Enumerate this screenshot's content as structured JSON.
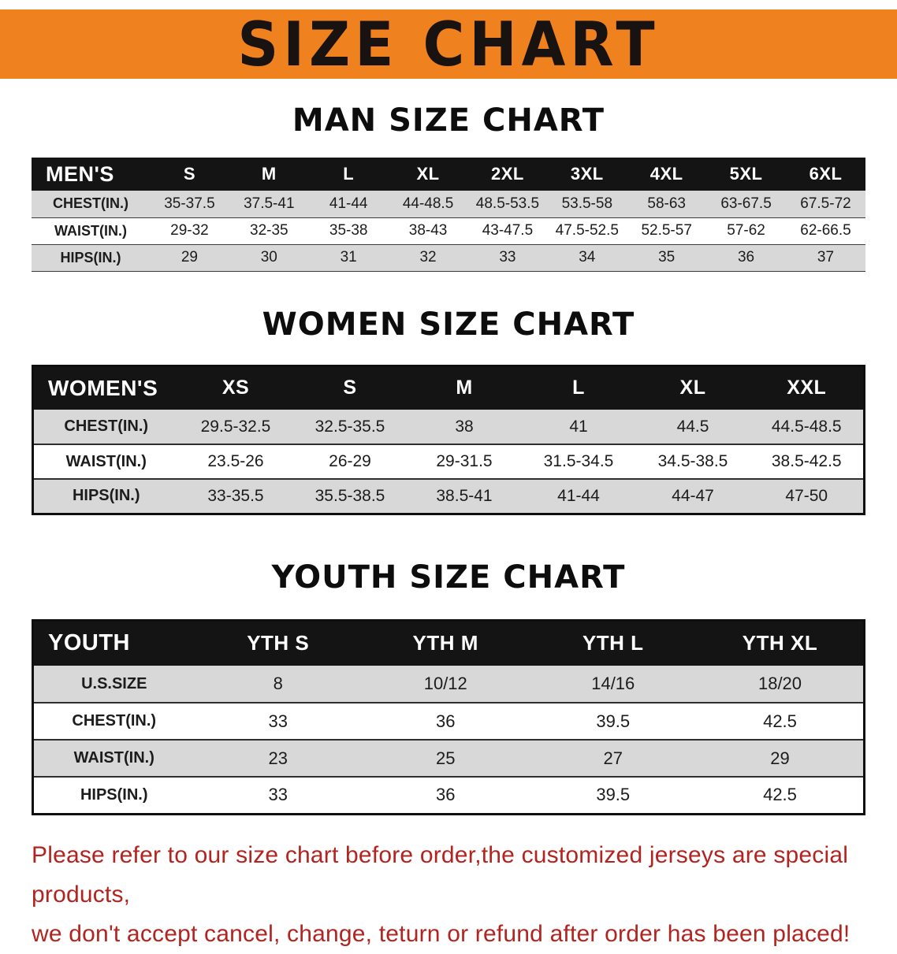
{
  "banner": {
    "title": "SIZE CHART"
  },
  "sections": [
    {
      "id": "man",
      "title": "MAN SIZE CHART",
      "table": {
        "header": [
          "MEN'S",
          "S",
          "M",
          "L",
          "XL",
          "2XL",
          "3XL",
          "4XL",
          "5XL",
          "6XL"
        ],
        "rows": [
          [
            "CHEST(IN.)",
            "35-37.5",
            "37.5-41",
            "41-44",
            "44-48.5",
            "48.5-53.5",
            "53.5-58",
            "58-63",
            "63-67.5",
            "67.5-72"
          ],
          [
            "WAIST(IN.)",
            "29-32",
            "32-35",
            "35-38",
            "38-43",
            "43-47.5",
            "47.5-52.5",
            "52.5-57",
            "57-62",
            "62-66.5"
          ],
          [
            "HIPS(IN.)",
            "29",
            "30",
            "31",
            "32",
            "33",
            "34",
            "35",
            "36",
            "37"
          ]
        ]
      }
    },
    {
      "id": "women",
      "title": "WOMEN SIZE CHART",
      "table": {
        "header": [
          "WOMEN'S",
          "XS",
          "S",
          "M",
          "L",
          "XL",
          "XXL"
        ],
        "rows": [
          [
            "CHEST(IN.)",
            "29.5-32.5",
            "32.5-35.5",
            "38",
            "41",
            "44.5",
            "44.5-48.5"
          ],
          [
            "WAIST(IN.)",
            "23.5-26",
            "26-29",
            "29-31.5",
            "31.5-34.5",
            "34.5-38.5",
            "38.5-42.5"
          ],
          [
            "HIPS(IN.)",
            "33-35.5",
            "35.5-38.5",
            "38.5-41",
            "41-44",
            "44-47",
            "47-50"
          ]
        ]
      }
    },
    {
      "id": "youth",
      "title": "YOUTH SIZE CHART",
      "table": {
        "header": [
          "YOUTH",
          "YTH S",
          "YTH M",
          "YTH L",
          "YTH XL"
        ],
        "rows": [
          [
            "U.S.SIZE",
            "8",
            "10/12",
            "14/16",
            "18/20"
          ],
          [
            "CHEST(IN.)",
            "33",
            "36",
            "39.5",
            "42.5"
          ],
          [
            "WAIST(IN.)",
            "23",
            "25",
            "27",
            "29"
          ],
          [
            "HIPS(IN.)",
            "33",
            "36",
            "39.5",
            "42.5"
          ]
        ]
      }
    }
  ],
  "notice": {
    "line1": "Please refer to our size chart before order,the customized jerseys are special products,",
    "line2": "we don't accept cancel, change, teturn or refund after order has been placed!"
  },
  "colors": {
    "banner_bg": "#f0811f",
    "header_row_bg": "#141414",
    "header_row_text": "#ffffff",
    "zebra_gray": "#d8d8d8",
    "notice_red": "#b2241f"
  }
}
